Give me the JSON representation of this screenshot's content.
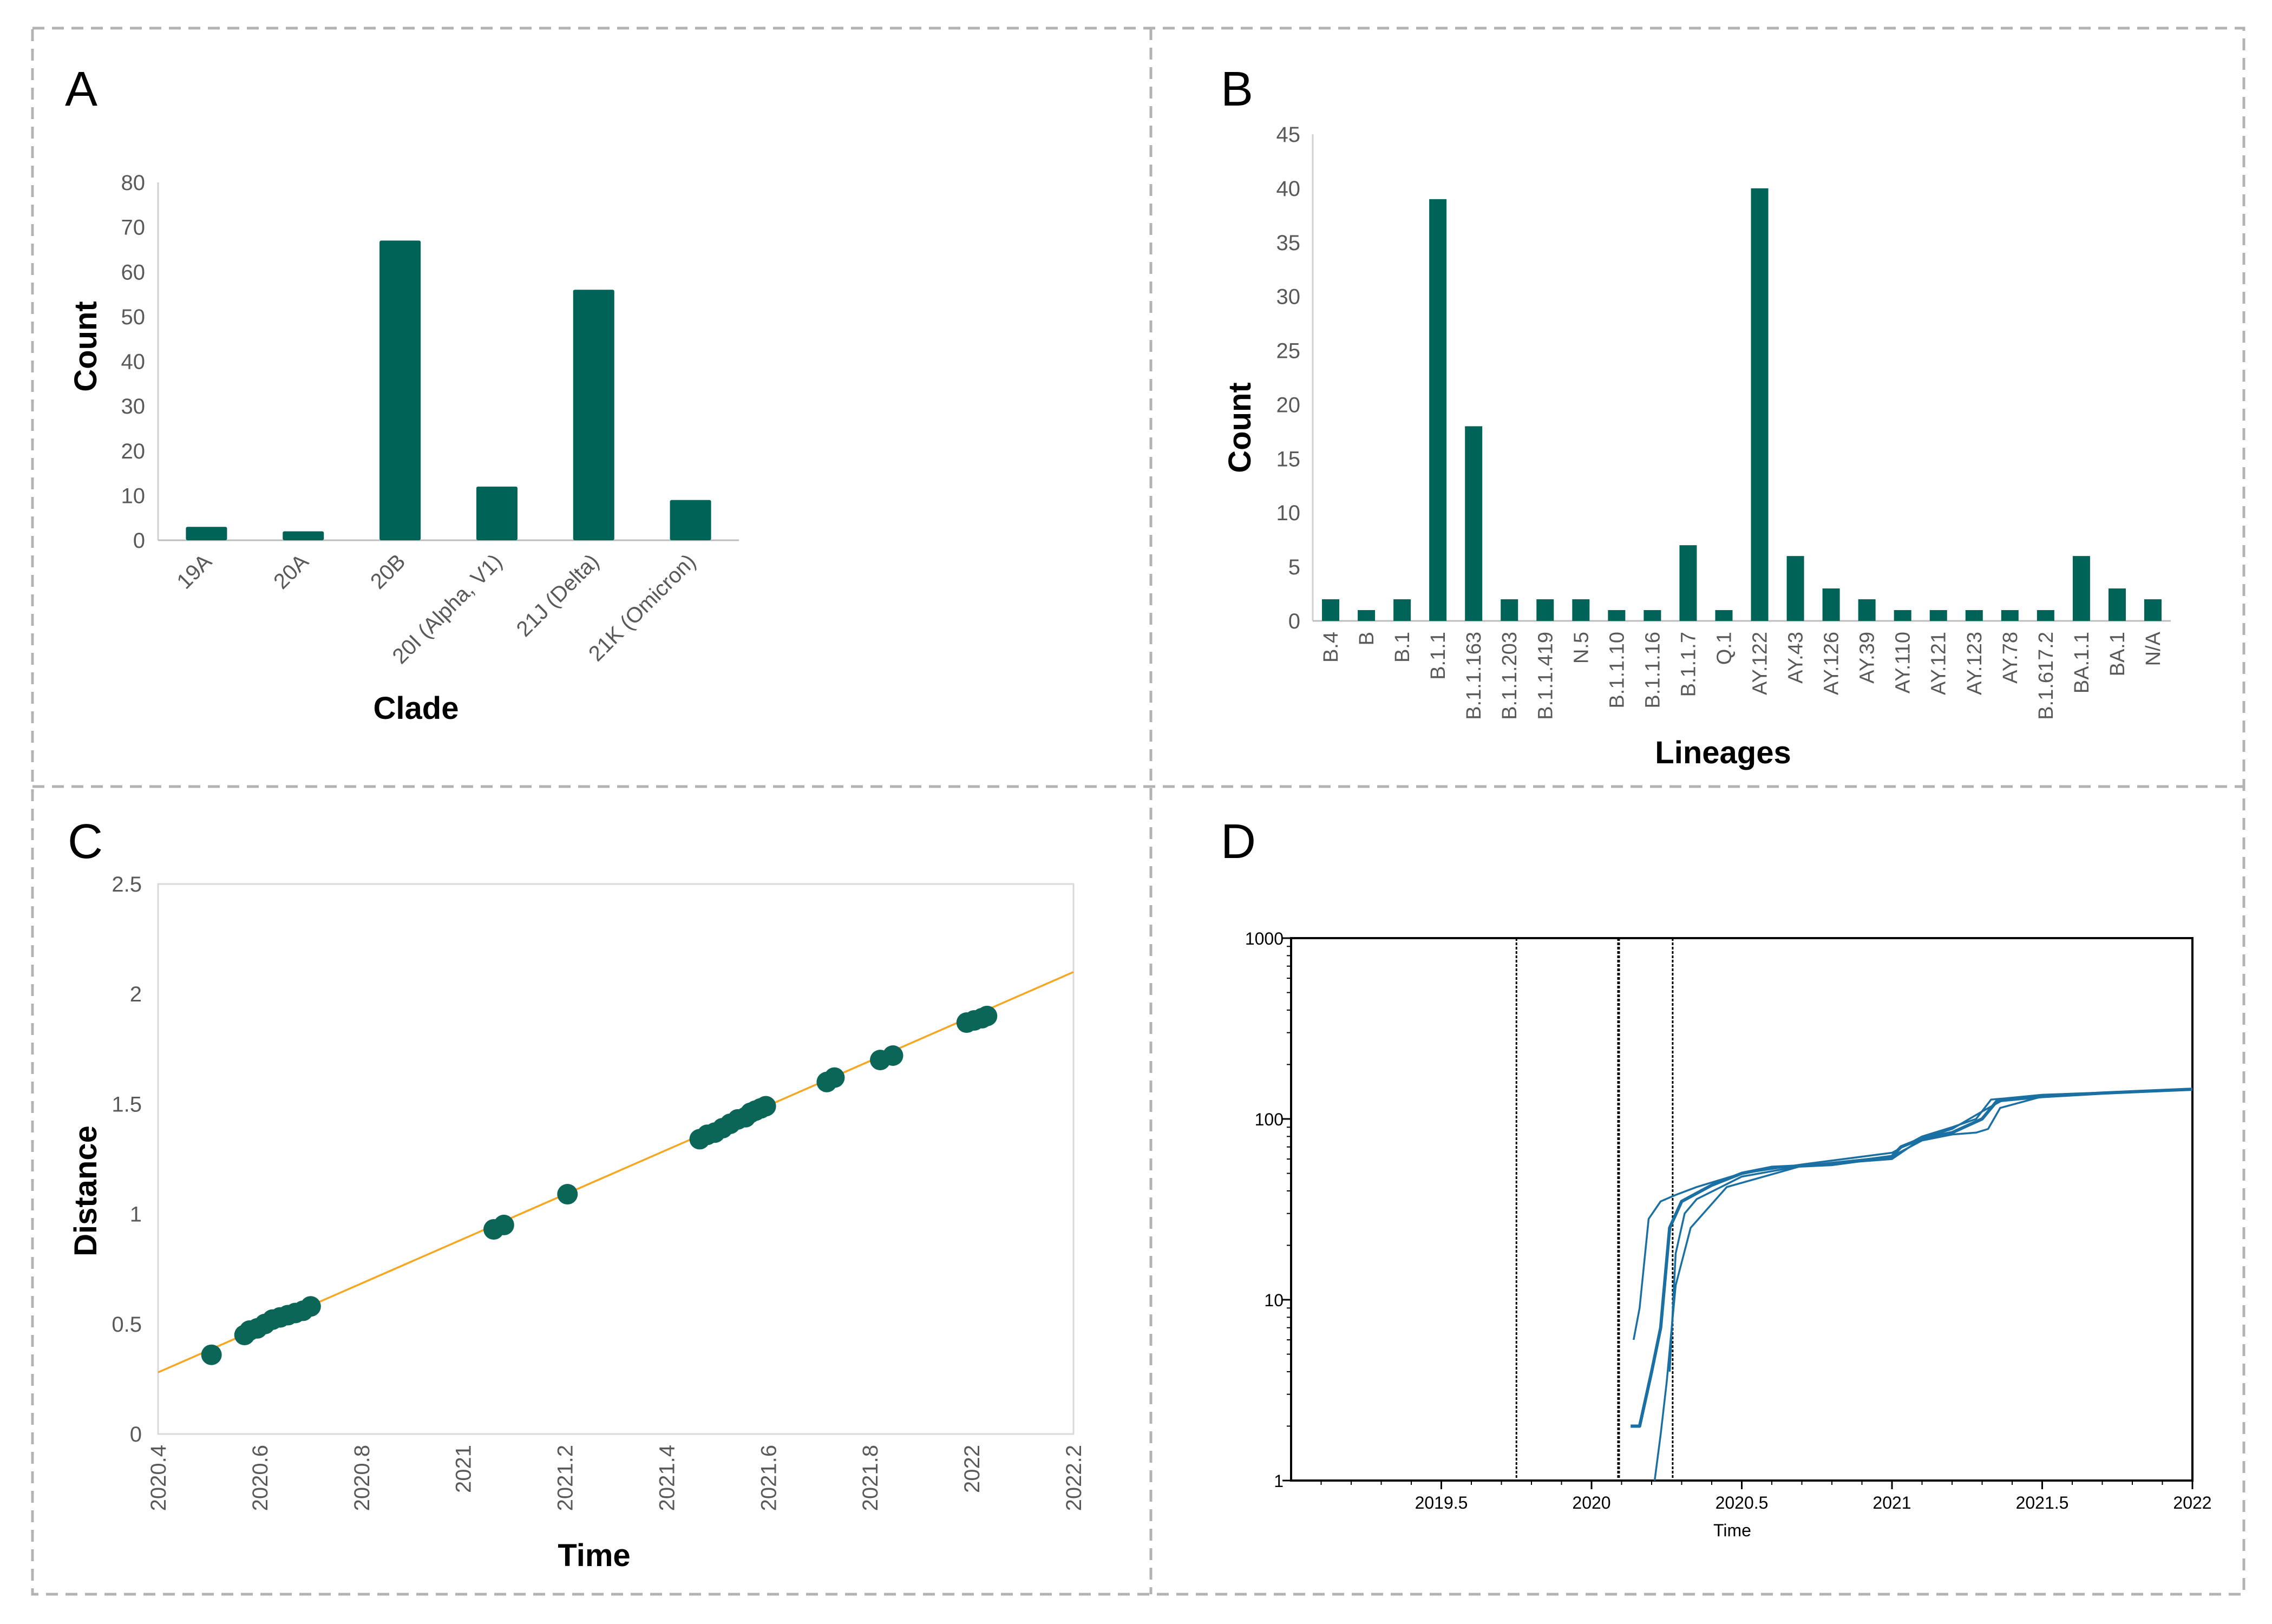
{
  "panels": {
    "a": {
      "letter": "A"
    },
    "b": {
      "letter": "B"
    },
    "c": {
      "letter": "C"
    },
    "d": {
      "letter": "D"
    }
  },
  "colors": {
    "bar": "#006358",
    "point": "#0B6658",
    "fit_line": "#F5A623",
    "tree_line": "#1A6FA3",
    "frame": "#B3B3B3",
    "axis_text": "#595959",
    "label_text": "#000000"
  },
  "chart_data": [
    {
      "id": "clade",
      "type": "bar",
      "title": "",
      "xlabel": "Clade",
      "ylabel": "Count",
      "categories": [
        "19A",
        "20A",
        "20B",
        "20I (Alpha, V1)",
        "21J (Delta)",
        "21K (Omicron)"
      ],
      "values": [
        3,
        2,
        67,
        12,
        56,
        9
      ],
      "ylim": [
        0,
        80
      ],
      "yticks": [
        "0",
        "10",
        "20",
        "30",
        "40",
        "50",
        "60",
        "70",
        "80"
      ],
      "grid": false
    },
    {
      "id": "lineages",
      "type": "bar",
      "title": "",
      "xlabel": "Lineages",
      "ylabel": "Count",
      "categories": [
        "B.4",
        "B",
        "B.1",
        "B.1.1",
        "B.1.1.163",
        "B.1.1.203",
        "B.1.1.419",
        "N.5",
        "B.1.1.10",
        "B.1.1.16",
        "B.1.1.7",
        "Q.1",
        "AY.122",
        "AY.43",
        "AY.126",
        "AY.39",
        "AY.110",
        "AY.121",
        "AY.123",
        "AY.78",
        "B.1.617.2",
        "BA.1.1",
        "BA.1",
        "N/A"
      ],
      "values": [
        2,
        1,
        2,
        39,
        18,
        2,
        2,
        2,
        1,
        1,
        7,
        1,
        40,
        6,
        3,
        2,
        1,
        1,
        1,
        1,
        1,
        6,
        3,
        2
      ],
      "ylim": [
        0,
        45
      ],
      "yticks": [
        "0",
        "5",
        "10",
        "15",
        "20",
        "25",
        "30",
        "35",
        "40",
        "45"
      ],
      "grid": false
    },
    {
      "id": "root_to_tip",
      "type": "scatter",
      "title": "",
      "xlabel": "Time",
      "ylabel": "Distance",
      "xlim": [
        2020.4,
        2022.2
      ],
      "ylim": [
        0,
        2.5
      ],
      "xticks": [
        "2020.4",
        "2020.6",
        "2020.8",
        "2021",
        "2021.2",
        "2021.4",
        "2021.6",
        "2021.8",
        "2022",
        "2022.2"
      ],
      "yticks": [
        "0",
        "0.5",
        "1",
        "1.5",
        "2",
        "2.5"
      ],
      "points": {
        "x": [
          2020.505,
          2020.57,
          2020.58,
          2020.595,
          2020.61,
          2020.625,
          2020.64,
          2020.655,
          2020.67,
          2020.685,
          2020.7,
          2021.06,
          2021.08,
          2021.205,
          2021.465,
          2021.48,
          2021.495,
          2021.51,
          2021.525,
          2021.54,
          2021.555,
          2021.565,
          2021.575,
          2021.585,
          2021.595,
          2021.715,
          2021.73,
          2021.82,
          2021.845,
          2021.99,
          2022.005,
          2022.02,
          2022.03
        ],
        "y": [
          0.36,
          0.45,
          0.47,
          0.48,
          0.5,
          0.52,
          0.53,
          0.54,
          0.55,
          0.56,
          0.58,
          0.93,
          0.95,
          1.09,
          1.34,
          1.36,
          1.37,
          1.39,
          1.41,
          1.43,
          1.44,
          1.46,
          1.47,
          1.48,
          1.49,
          1.6,
          1.62,
          1.7,
          1.72,
          1.87,
          1.88,
          1.89,
          1.9
        ]
      },
      "fit_line": {
        "x": [
          2020.4,
          2022.2
        ],
        "y": [
          0.28,
          2.1
        ]
      },
      "grid": false
    },
    {
      "id": "ltt",
      "type": "line",
      "title": "",
      "xlabel": "Time",
      "ylabel": "",
      "yscale": "log",
      "xlim": [
        2019.0,
        2022.0
      ],
      "ylim": [
        1,
        1000
      ],
      "xticks": [
        "2019.5",
        "2020",
        "2020.5",
        "2021",
        "2021.5",
        "2022"
      ],
      "yticks": [
        "1",
        "10",
        "100",
        "1000"
      ],
      "xtick_values": [
        2019.5,
        2020,
        2020.5,
        2021,
        2021.5,
        2022
      ],
      "ytick_values": [
        1,
        10,
        100,
        1000
      ],
      "vlines": [
        2019.75,
        2020.09,
        2020.27
      ],
      "series": [
        {
          "name": "main",
          "x": [
            2020.13,
            2020.16,
            2020.2,
            2020.23,
            2020.26,
            2020.3,
            2020.4,
            2020.5,
            2020.6,
            2020.8,
            2021.0,
            2021.03,
            2021.1,
            2021.2,
            2021.3,
            2021.35,
            2021.5,
            2021.7,
            2022.0
          ],
          "y": [
            2,
            2,
            4,
            7,
            25,
            35,
            43,
            50,
            54,
            56,
            62,
            70,
            78,
            84,
            100,
            126,
            133,
            139,
            146
          ]
        },
        {
          "name": "early",
          "x": [
            2020.14,
            2020.16,
            2020.19,
            2020.23,
            2020.28,
            2020.35,
            2020.5,
            2020.7,
            2021.0,
            2021.1,
            2021.2,
            2021.28,
            2021.33,
            2021.5,
            2022.0
          ],
          "y": [
            6,
            9,
            28,
            35,
            38,
            42,
            50,
            56,
            65,
            80,
            90,
            100,
            128,
            135,
            146
          ]
        },
        {
          "name": "mid",
          "x": [
            2020.21,
            2020.23,
            2020.25,
            2020.28,
            2020.33,
            2020.45,
            2020.7,
            2021.0,
            2021.1,
            2021.2,
            2021.3,
            2021.38,
            2021.5,
            2022.0
          ],
          "y": [
            1,
            1.8,
            3.5,
            12,
            25,
            42,
            55,
            60,
            78,
            88,
            110,
            130,
            136,
            146
          ]
        },
        {
          "name": "late",
          "x": [
            2020.26,
            2020.28,
            2020.31,
            2020.35,
            2020.5,
            2020.7,
            2021.0,
            2021.1,
            2021.2,
            2021.28,
            2021.32,
            2021.36,
            2021.5,
            2022.0
          ],
          "y": [
            4,
            18,
            30,
            36,
            48,
            55,
            62,
            76,
            82,
            84,
            88,
            115,
            133,
            146
          ]
        }
      ],
      "grid": false
    }
  ]
}
